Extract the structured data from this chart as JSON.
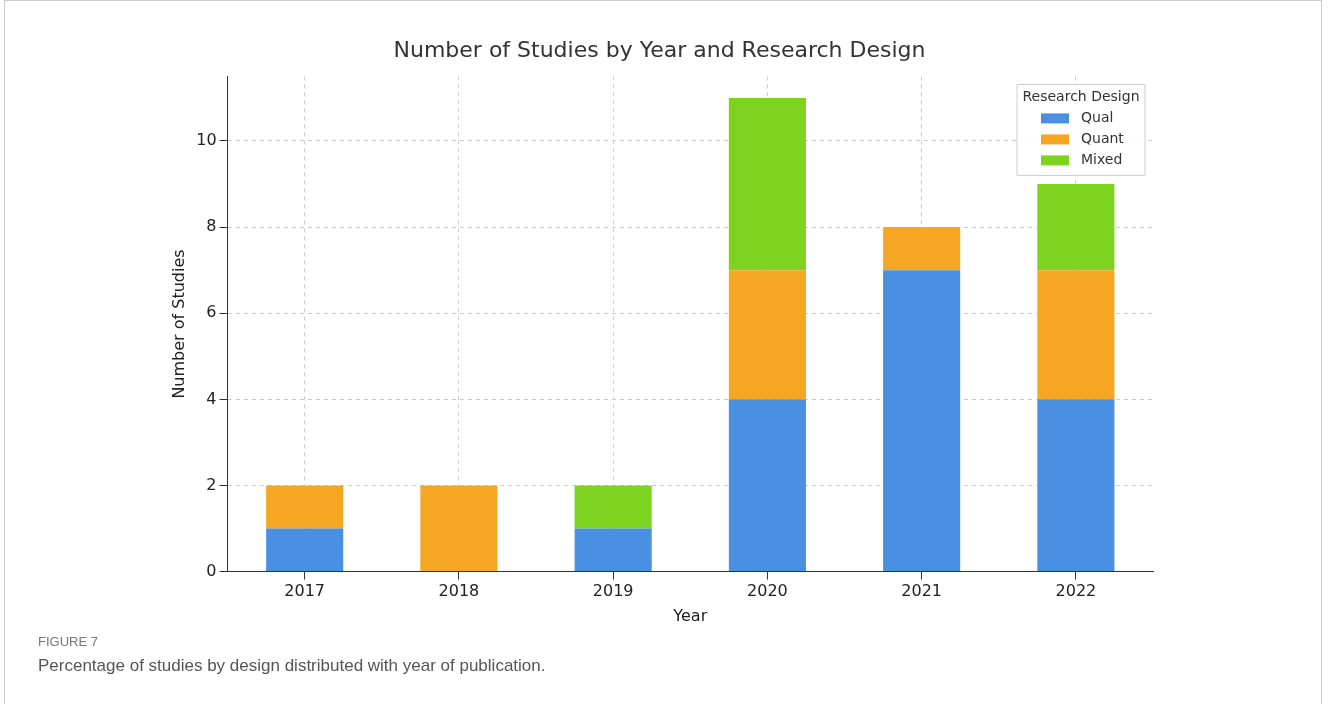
{
  "chart_data": {
    "type": "bar",
    "title": "Number of Studies by Year and Research Design",
    "xlabel": "Year",
    "ylabel": "Number of Studies",
    "legend_title": "Research Design",
    "categories": [
      "2017",
      "2018",
      "2019",
      "2020",
      "2021",
      "2022"
    ],
    "series": [
      {
        "name": "Qual",
        "color": "#4a90e2",
        "values": [
          1,
          0,
          1,
          4,
          7,
          4
        ]
      },
      {
        "name": "Quant",
        "color": "#f5a623",
        "values": [
          1,
          2,
          0,
          3,
          1,
          3
        ]
      },
      {
        "name": "Mixed",
        "color": "#7ed321",
        "values": [
          0,
          0,
          1,
          4,
          0,
          2
        ]
      }
    ],
    "stacked": true,
    "ylim": [
      0,
      11.5
    ],
    "yticks": [
      0,
      2,
      4,
      6,
      8,
      10
    ],
    "grid": true,
    "legend": "top right",
    "annotations": [
      "FIGURE 7",
      "Percentage of studies by design distributed with year of publication."
    ]
  }
}
